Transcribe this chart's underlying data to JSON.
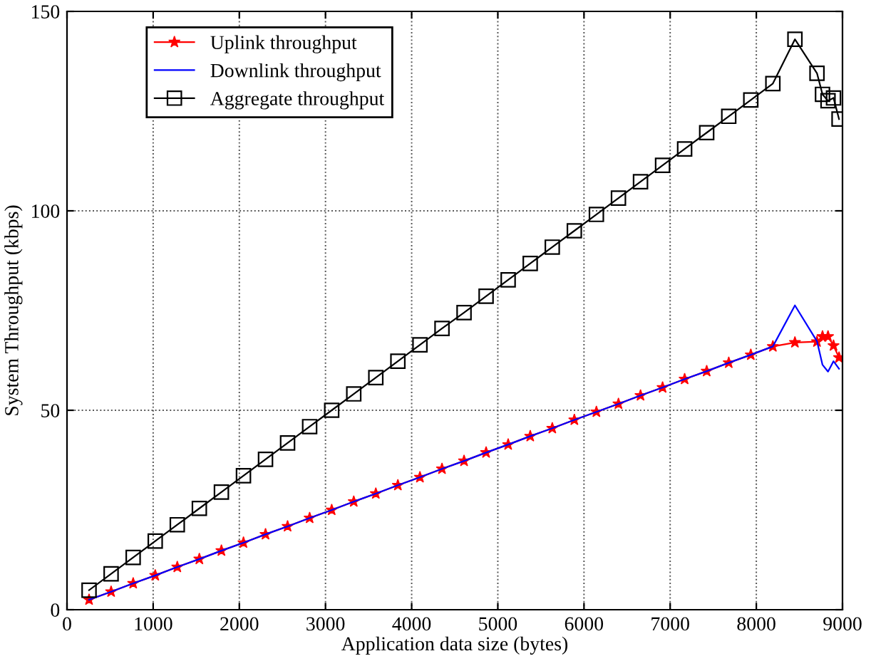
{
  "chart_data": {
    "type": "line",
    "xlabel": "Application data size (bytes)",
    "ylabel": "System Throughput (kbps)",
    "xlim": [
      0,
      9000
    ],
    "ylim": [
      0,
      150
    ],
    "xticks": [
      0,
      1000,
      2000,
      3000,
      4000,
      5000,
      6000,
      7000,
      8000,
      9000
    ],
    "yticks": [
      0,
      50,
      100,
      150
    ],
    "grid": true,
    "legend": "top left",
    "x": [
      256,
      512,
      768,
      1024,
      1280,
      1536,
      1792,
      2048,
      2304,
      2560,
      2816,
      3072,
      3328,
      3584,
      3840,
      4096,
      4352,
      4608,
      4864,
      5120,
      5376,
      5632,
      5888,
      6144,
      6400,
      6656,
      6912,
      7168,
      7424,
      7680,
      7936,
      8192,
      8448,
      8704,
      8768,
      8832,
      8896,
      8960
    ],
    "series": [
      {
        "name": "Uplink throughput",
        "color": "#ff0000",
        "marker": "star",
        "values": [
          2.5,
          4.5,
          6.6,
          8.6,
          10.7,
          12.7,
          14.8,
          16.8,
          18.9,
          20.9,
          23.0,
          25.0,
          27.1,
          29.1,
          31.2,
          33.2,
          35.3,
          37.3,
          39.4,
          41.4,
          43.5,
          45.5,
          47.6,
          49.6,
          51.6,
          53.7,
          55.7,
          57.8,
          59.8,
          61.9,
          63.9,
          66.0,
          67.0,
          67.2,
          68.5,
          68.5,
          66.2,
          63.2
        ]
      },
      {
        "name": "Downlink throughput",
        "color": "#0000ff",
        "marker": "none",
        "values": [
          2.5,
          4.5,
          6.6,
          8.6,
          10.7,
          12.7,
          14.8,
          16.8,
          18.9,
          20.9,
          23.0,
          25.0,
          27.1,
          29.1,
          31.2,
          33.2,
          35.3,
          37.3,
          39.4,
          41.4,
          43.5,
          45.5,
          47.6,
          49.6,
          51.6,
          53.7,
          55.7,
          57.8,
          59.8,
          61.9,
          63.9,
          66.0,
          76.3,
          67.3,
          61.4,
          59.7,
          62.3,
          60.4
        ]
      },
      {
        "name": "Aggregate throughput",
        "color": "#000000",
        "marker": "square",
        "values": [
          4.9,
          9.0,
          13.1,
          17.2,
          21.3,
          25.4,
          29.5,
          33.6,
          37.7,
          41.8,
          45.9,
          50.0,
          54.1,
          58.2,
          62.3,
          66.4,
          70.5,
          74.5,
          78.6,
          82.7,
          86.8,
          90.9,
          95.0,
          99.1,
          103.2,
          107.3,
          111.4,
          115.5,
          119.6,
          123.7,
          127.8,
          131.9,
          143.0,
          134.5,
          129.2,
          127.6,
          128.3,
          123.0
        ]
      }
    ]
  }
}
